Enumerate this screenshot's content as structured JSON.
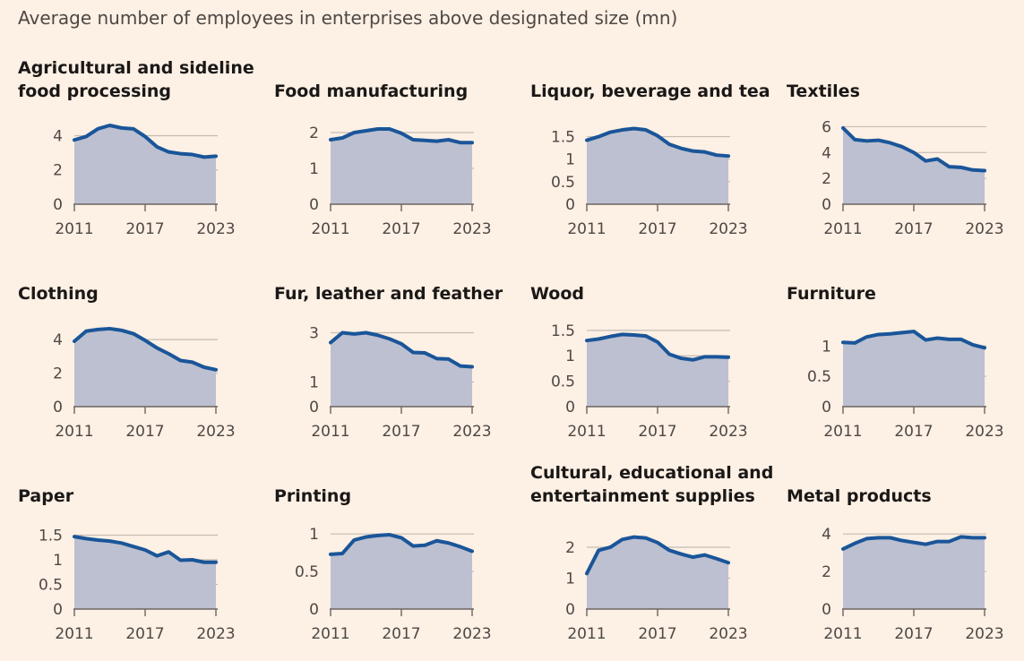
{
  "title": "Average number of employees in enterprises above designated size (mn)",
  "colors": {
    "background": "#fdf0e4",
    "area_fill": "#bcc0d0",
    "line": "#1a5599",
    "grid": "#c4bcb4",
    "axis": "#6b6560",
    "text": "#4d4845",
    "title_text": "#1a1817"
  },
  "chart_data": [
    {
      "type": "area",
      "title_lines": [
        "Agricultural and sideline",
        "food processing"
      ],
      "x": [
        2011,
        2012,
        2013,
        2014,
        2015,
        2016,
        2017,
        2018,
        2019,
        2020,
        2021,
        2022,
        2023
      ],
      "values": [
        3.75,
        3.95,
        4.4,
        4.6,
        4.45,
        4.4,
        3.95,
        3.35,
        3.05,
        2.95,
        2.9,
        2.75,
        2.8
      ],
      "ylim": [
        0,
        4.6
      ],
      "yticks": [
        0,
        2,
        4
      ],
      "xticks": [
        2011,
        2017,
        2023
      ],
      "grid": true
    },
    {
      "type": "area",
      "title_lines": [
        "Food manufacturing"
      ],
      "x": [
        2011,
        2012,
        2013,
        2014,
        2015,
        2016,
        2017,
        2018,
        2019,
        2020,
        2021,
        2022,
        2023
      ],
      "values": [
        1.8,
        1.85,
        2.0,
        2.05,
        2.1,
        2.1,
        1.98,
        1.8,
        1.78,
        1.76,
        1.8,
        1.72,
        1.72
      ],
      "ylim": [
        0,
        2.2
      ],
      "yticks": [
        0,
        1,
        2
      ],
      "xticks": [
        2011,
        2017,
        2023
      ],
      "grid": true
    },
    {
      "type": "area",
      "title_lines": [
        "Liquor, beverage and tea"
      ],
      "x": [
        2011,
        2012,
        2013,
        2014,
        2015,
        2016,
        2017,
        2018,
        2019,
        2020,
        2021,
        2022,
        2023
      ],
      "values": [
        1.42,
        1.5,
        1.6,
        1.65,
        1.68,
        1.65,
        1.52,
        1.33,
        1.24,
        1.18,
        1.16,
        1.09,
        1.07
      ],
      "ylim": [
        0,
        1.75
      ],
      "yticks": [
        0,
        0.5,
        1,
        1.5
      ],
      "xticks": [
        2011,
        2017,
        2023
      ],
      "grid": true
    },
    {
      "type": "area",
      "title_lines": [
        "Textiles"
      ],
      "x": [
        2011,
        2012,
        2013,
        2014,
        2015,
        2016,
        2017,
        2018,
        2019,
        2020,
        2021,
        2022,
        2023
      ],
      "values": [
        5.9,
        5.0,
        4.9,
        4.95,
        4.75,
        4.45,
        4.0,
        3.35,
        3.5,
        2.9,
        2.85,
        2.65,
        2.6
      ],
      "ylim": [
        0,
        6.1
      ],
      "yticks": [
        0,
        2,
        4,
        6
      ],
      "xticks": [
        2011,
        2017,
        2023
      ],
      "grid": true
    },
    {
      "type": "area",
      "title_lines": [
        "Clothing"
      ],
      "x": [
        2011,
        2012,
        2013,
        2014,
        2015,
        2016,
        2017,
        2018,
        2019,
        2020,
        2021,
        2022,
        2023
      ],
      "values": [
        3.9,
        4.5,
        4.6,
        4.65,
        4.55,
        4.35,
        3.95,
        3.5,
        3.15,
        2.75,
        2.65,
        2.35,
        2.2
      ],
      "ylim": [
        0,
        4.7
      ],
      "yticks": [
        0,
        2,
        4
      ],
      "xticks": [
        2011,
        2017,
        2023
      ],
      "grid": true
    },
    {
      "type": "area",
      "title_lines": [
        "Fur, leather and feather"
      ],
      "x": [
        2011,
        2012,
        2013,
        2014,
        2015,
        2016,
        2017,
        2018,
        2019,
        2020,
        2021,
        2022,
        2023
      ],
      "values": [
        2.6,
        3.0,
        2.95,
        3.0,
        2.9,
        2.75,
        2.55,
        2.2,
        2.18,
        1.95,
        1.93,
        1.65,
        1.62
      ],
      "ylim": [
        0,
        3.2
      ],
      "yticks": [
        0,
        1,
        3
      ],
      "xticks": [
        2011,
        2017,
        2023
      ],
      "grid": true
    },
    {
      "type": "area",
      "title_lines": [
        "Wood"
      ],
      "x": [
        2011,
        2012,
        2013,
        2014,
        2015,
        2016,
        2017,
        2018,
        2019,
        2020,
        2021,
        2022,
        2023
      ],
      "values": [
        1.3,
        1.33,
        1.38,
        1.42,
        1.41,
        1.39,
        1.27,
        1.03,
        0.95,
        0.92,
        0.98,
        0.98,
        0.97
      ],
      "ylim": [
        0,
        1.55
      ],
      "yticks": [
        0,
        0.5,
        1,
        1.5
      ],
      "xticks": [
        2011,
        2017,
        2023
      ],
      "grid": true
    },
    {
      "type": "area",
      "title_lines": [
        "Furniture"
      ],
      "x": [
        2011,
        2012,
        2013,
        2014,
        2015,
        2016,
        2017,
        2018,
        2019,
        2020,
        2021,
        2022,
        2023
      ],
      "values": [
        1.06,
        1.05,
        1.15,
        1.19,
        1.2,
        1.22,
        1.24,
        1.1,
        1.13,
        1.11,
        1.11,
        1.02,
        0.97
      ],
      "ylim": [
        0,
        1.3
      ],
      "yticks": [
        0,
        0.5,
        1
      ],
      "xticks": [
        2011,
        2017,
        2023
      ],
      "grid": true
    },
    {
      "type": "area",
      "title_lines": [
        "Paper"
      ],
      "x": [
        2011,
        2012,
        2013,
        2014,
        2015,
        2016,
        2017,
        2018,
        2019,
        2020,
        2021,
        2022,
        2023
      ],
      "values": [
        1.47,
        1.43,
        1.4,
        1.38,
        1.34,
        1.27,
        1.2,
        1.08,
        1.16,
        0.99,
        1.0,
        0.95,
        0.95
      ],
      "ylim": [
        0,
        1.6
      ],
      "yticks": [
        0,
        0.5,
        1,
        1.5
      ],
      "xticks": [
        2011,
        2017,
        2023
      ],
      "grid": true
    },
    {
      "type": "area",
      "title_lines": [
        "Printing"
      ],
      "x": [
        2011,
        2012,
        2013,
        2014,
        2015,
        2016,
        2017,
        2018,
        2019,
        2020,
        2021,
        2022,
        2023
      ],
      "values": [
        0.73,
        0.74,
        0.92,
        0.96,
        0.98,
        0.99,
        0.95,
        0.84,
        0.85,
        0.91,
        0.88,
        0.83,
        0.77
      ],
      "ylim": [
        0,
        1.05
      ],
      "yticks": [
        0,
        0.5,
        1
      ],
      "xticks": [
        2011,
        2017,
        2023
      ],
      "grid": true
    },
    {
      "type": "area",
      "title_lines": [
        "Cultural, educational and",
        "entertainment supplies"
      ],
      "x": [
        2011,
        2012,
        2013,
        2014,
        2015,
        2016,
        2017,
        2018,
        2019,
        2020,
        2021,
        2022,
        2023
      ],
      "values": [
        1.15,
        1.9,
        2.0,
        2.25,
        2.33,
        2.3,
        2.15,
        1.9,
        1.78,
        1.68,
        1.75,
        1.63,
        1.5
      ],
      "ylim": [
        0,
        2.55
      ],
      "yticks": [
        0,
        1,
        2
      ],
      "xticks": [
        2011,
        2017,
        2023
      ],
      "grid": true
    },
    {
      "type": "area",
      "title_lines": [
        "Metal products"
      ],
      "x": [
        2011,
        2012,
        2013,
        2014,
        2015,
        2016,
        2017,
        2018,
        2019,
        2020,
        2021,
        2022,
        2023
      ],
      "values": [
        3.2,
        3.5,
        3.75,
        3.8,
        3.8,
        3.65,
        3.55,
        3.45,
        3.6,
        3.6,
        3.85,
        3.8,
        3.8
      ],
      "ylim": [
        0,
        4.2
      ],
      "yticks": [
        0,
        2,
        4
      ],
      "xticks": [
        2011,
        2017,
        2023
      ],
      "grid": true
    }
  ]
}
